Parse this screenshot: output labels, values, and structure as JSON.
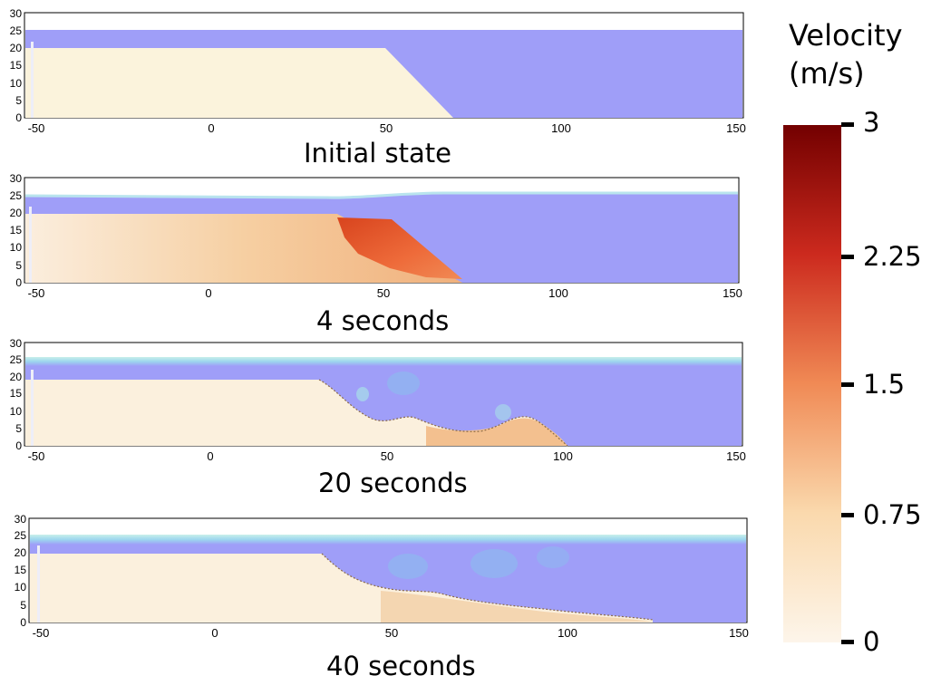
{
  "panels": [
    {
      "caption": "Initial state"
    },
    {
      "caption": "4 seconds"
    },
    {
      "caption": "20 seconds"
    },
    {
      "caption": "40 seconds"
    }
  ],
  "axes": {
    "x_ticks": [
      "-50",
      "0",
      "50",
      "100",
      "150"
    ],
    "y_ticks": [
      "0",
      "5",
      "10",
      "15",
      "20",
      "25",
      "30"
    ]
  },
  "colorbar": {
    "title_line1": "Velocity",
    "title_line2": "(m/s)",
    "ticks": [
      "3",
      "2.25",
      "1.5",
      "0.75",
      "0"
    ],
    "range": [
      0,
      3
    ],
    "colors": {
      "low": "#fdf3e1",
      "mid": "#f29a5a",
      "high": "#7a0000"
    }
  },
  "colors": {
    "water": "#9f9ef8",
    "sediment": "#fbf3dc",
    "moving_sediment": "#e8663a"
  }
}
